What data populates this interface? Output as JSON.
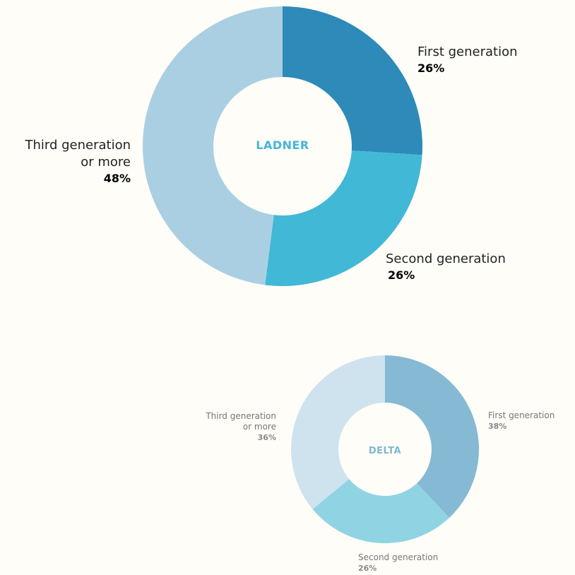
{
  "chart_data": [
    {
      "type": "pie",
      "title": "LADNER",
      "categories": [
        "First generation",
        "Second generation",
        "Third generation or more"
      ],
      "values": [
        26,
        26,
        48
      ],
      "value_labels": [
        "26%",
        "26%",
        "48%"
      ],
      "label_lines": {
        "third": [
          "Third generation",
          "or more"
        ]
      },
      "colors": [
        "#2d8ab9",
        "#41b8d6",
        "#aacfe3"
      ],
      "title_color": "#45b5d8"
    },
    {
      "type": "pie",
      "title": "DELTA",
      "categories": [
        "First generation",
        "Second generation",
        "Third generation or more"
      ],
      "values": [
        38,
        26,
        36
      ],
      "value_labels": [
        "38%",
        "26%",
        "36%"
      ],
      "label_lines": {
        "third": [
          "Third generation",
          "or more"
        ]
      },
      "colors": [
        "#85b9d4",
        "#90d4e4",
        "#cee3ee"
      ],
      "title_color": "#7fb8d0"
    }
  ]
}
